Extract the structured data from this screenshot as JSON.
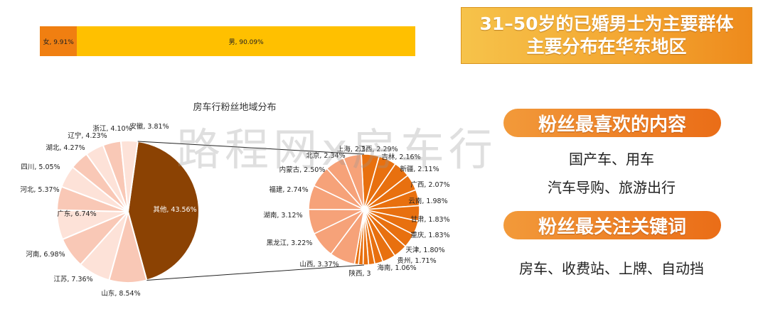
{
  "gender_bar": {
    "segments": [
      {
        "label": "女, 9.91%",
        "value": 9.91,
        "color": "#f07f11"
      },
      {
        "label": "男, 90.09%",
        "value": 90.09,
        "color": "#ffc000"
      }
    ]
  },
  "banner": {
    "line1": "31–50岁的已婚男士为主要群体",
    "line2": "主要分布在华东地区"
  },
  "watermark": "路程网x房车行",
  "section1": {
    "title": "粉丝最喜欢的内容",
    "line1": "国产车、用车",
    "line2": "汽车导购、旅游出行"
  },
  "section2": {
    "title": "粉丝最关注关键词",
    "line1": "房车、收费站、上牌、自动挡"
  },
  "chart_data": {
    "type": "pie",
    "title": "房车行粉丝地域分布",
    "main_pie": [
      {
        "label": "其他",
        "value": 43.56
      },
      {
        "label": "山东",
        "value": 8.54
      },
      {
        "label": "江苏",
        "value": 7.36
      },
      {
        "label": "河南",
        "value": 6.98
      },
      {
        "label": "广东",
        "value": 6.74
      },
      {
        "label": "河北",
        "value": 5.37
      },
      {
        "label": "四川",
        "value": 5.05
      },
      {
        "label": "湖北",
        "value": 4.27
      },
      {
        "label": "辽宁",
        "value": 4.23
      },
      {
        "label": "浙江",
        "value": 4.1
      },
      {
        "label": "安徽",
        "value": 3.81
      }
    ],
    "other_breakdown": [
      {
        "label": "上海",
        "value": 2.3
      },
      {
        "label": "江西",
        "value": 2.29
      },
      {
        "label": "吉林",
        "value": 2.16
      },
      {
        "label": "新疆",
        "value": 2.11
      },
      {
        "label": "广西",
        "value": 2.07
      },
      {
        "label": "云南",
        "value": 1.98
      },
      {
        "label": "甘肃",
        "value": 1.83
      },
      {
        "label": "重庆",
        "value": 1.83
      },
      {
        "label": "天津",
        "value": 1.8
      },
      {
        "label": "贵州",
        "value": 1.71
      },
      {
        "label": "海南",
        "value": 1.06
      },
      {
        "label": "",
        "value": 0.8
      },
      {
        "label": "",
        "value": 0.7
      },
      {
        "label": "",
        "value": 0.6
      },
      {
        "label": "",
        "value": 0.5
      },
      {
        "label": "陕西",
        "value": 3.3
      },
      {
        "label": "山西",
        "value": 3.37
      },
      {
        "label": "黑龙江",
        "value": 3.22
      },
      {
        "label": "湖南",
        "value": 3.12
      },
      {
        "label": "福建",
        "value": 2.74
      },
      {
        "label": "内蒙古",
        "value": 2.5
      },
      {
        "label": "北京",
        "value": 2.34
      }
    ],
    "main_labels": [
      "其他, 43.56%",
      "山东, 8.54%",
      "江苏, 7.36%",
      "河南, 6.98%",
      "广东, 6.74%",
      "河北, 5.37%",
      "四川, 5.05%",
      "湖北, 4.27%",
      "辽宁, 4.23%",
      "浙江, 4.10%",
      "安徽, 3.81%"
    ],
    "sub_labels": [
      "上海, 2.3",
      "江西, 2.29%",
      "吉林, 2.16%",
      "新疆, 2.11%",
      "广西, 2.07%",
      "云南, 1.98%",
      "甘肃, 1.83%",
      "重庆, 1.83%",
      "天津, 1.80%",
      "贵州, 1.71%",
      "海南, 1.06%",
      "陕西, 3",
      "山西, 3.37%",
      "黑龙江, 3.22%",
      "湖南, 3.12%",
      "福建, 2.74%",
      "内蒙古, 2.50%",
      "北京, 2.34%"
    ],
    "colors": {
      "other": "#8b4203",
      "main_light": "#f9c8b6",
      "main_lighter": "#fde2d8",
      "sub_dark": "#e8700f",
      "sub_light": "#f6a279"
    }
  }
}
